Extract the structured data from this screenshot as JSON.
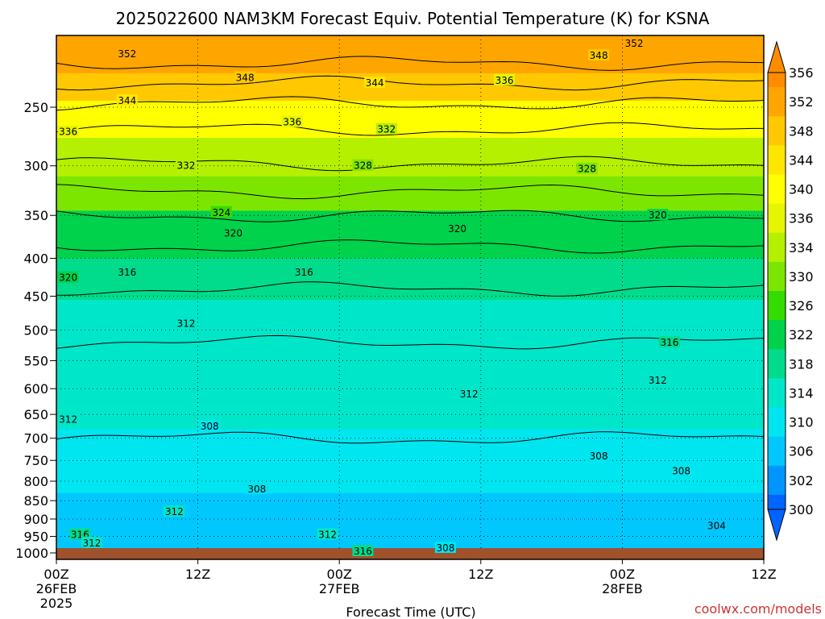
{
  "title": "2025022600 NAM3KM Forecast Equiv. Potential Temperature (K) for KSNA",
  "credit": "coolwx.com/models",
  "chart_data": {
    "type": "heatmap",
    "title": "2025022600 NAM3KM Forecast Equiv. Potential Temperature (K) for KSNA",
    "xlabel": "Forecast Time (UTC)",
    "ylabel": "",
    "x_range_hours": [
      0,
      60
    ],
    "y_range_hpa": [
      1000,
      200
    ],
    "y_scale": "log",
    "grid": true,
    "x_ticks": [
      {
        "hour": 0,
        "lines": [
          "00Z",
          "26FEB",
          "2025"
        ]
      },
      {
        "hour": 12,
        "lines": [
          "12Z"
        ]
      },
      {
        "hour": 24,
        "lines": [
          "00Z",
          "27FEB"
        ]
      },
      {
        "hour": 36,
        "lines": [
          "12Z"
        ]
      },
      {
        "hour": 48,
        "lines": [
          "00Z",
          "28FEB"
        ]
      },
      {
        "hour": 60,
        "lines": [
          "12Z"
        ]
      }
    ],
    "y_ticks": [
      250,
      300,
      350,
      400,
      450,
      500,
      550,
      600,
      650,
      700,
      750,
      800,
      850,
      900,
      950,
      1000
    ],
    "colorbar": {
      "labels": [
        356,
        352,
        348,
        344,
        340,
        336,
        334,
        330,
        326,
        322,
        318,
        314,
        310,
        306,
        302,
        300
      ],
      "colors": [
        "#ff8c00",
        "#ffa500",
        "#ffc800",
        "#ffe600",
        "#ffff00",
        "#e6f500",
        "#b4f000",
        "#7de600",
        "#34dc00",
        "#00d24b",
        "#00dc8c",
        "#00e6c8",
        "#00e6f0",
        "#00c8ff",
        "#0096ff",
        "#0064ff"
      ]
    },
    "fill_bands": [
      {
        "value": 352,
        "p_top": 200,
        "p_bottom": 225
      },
      {
        "value": 346,
        "p_top": 225,
        "p_bottom": 245
      },
      {
        "value": 340,
        "p_top": 245,
        "p_bottom": 275
      },
      {
        "value": 334,
        "p_top": 275,
        "p_bottom": 310
      },
      {
        "value": 328,
        "p_top": 310,
        "p_bottom": 345
      },
      {
        "value": 323,
        "p_top": 345,
        "p_bottom": 400
      },
      {
        "value": 319,
        "p_top": 400,
        "p_bottom": 455
      },
      {
        "value": 315,
        "p_top": 455,
        "p_bottom": 580
      },
      {
        "value": 312,
        "p_top": 580,
        "p_bottom": 680
      },
      {
        "value": 309,
        "p_top": 680,
        "p_bottom": 830
      },
      {
        "value": 307,
        "p_top": 830,
        "p_bottom": 920
      },
      {
        "value": 305,
        "p_top": 920,
        "p_bottom": 1000
      }
    ],
    "isotherm_levels": [
      {
        "theta_e": 352,
        "p": 218
      },
      {
        "theta_e": 348,
        "p": 232
      },
      {
        "theta_e": 344,
        "p": 247
      },
      {
        "theta_e": 336,
        "p": 268
      },
      {
        "theta_e": 332,
        "p": 298
      },
      {
        "theta_e": 328,
        "p": 325
      },
      {
        "theta_e": 324,
        "p": 350
      },
      {
        "theta_e": 320,
        "p": 385
      },
      {
        "theta_e": 316,
        "p": 440
      },
      {
        "theta_e": 312,
        "p": 520
      },
      {
        "theta_e": 308,
        "p": 700
      }
    ],
    "contour_labels": [
      {
        "text": "352",
        "hour": 6,
        "p": 212
      },
      {
        "text": "348",
        "hour": 16,
        "p": 228
      },
      {
        "text": "344",
        "hour": 27,
        "p": 232
      },
      {
        "text": "336",
        "hour": 38,
        "p": 230
      },
      {
        "text": "348",
        "hour": 46,
        "p": 213
      },
      {
        "text": "352",
        "hour": 49,
        "p": 205
      },
      {
        "text": "344",
        "hour": 6,
        "p": 245
      },
      {
        "text": "336",
        "hour": 1,
        "p": 270
      },
      {
        "text": "336",
        "hour": 20,
        "p": 262
      },
      {
        "text": "332",
        "hour": 28,
        "p": 268
      },
      {
        "text": "332",
        "hour": 11,
        "p": 300
      },
      {
        "text": "328",
        "hour": 26,
        "p": 300
      },
      {
        "text": "328",
        "hour": 45,
        "p": 303
      },
      {
        "text": "324",
        "hour": 14,
        "p": 347
      },
      {
        "text": "320",
        "hour": 15,
        "p": 370
      },
      {
        "text": "320",
        "hour": 34,
        "p": 365
      },
      {
        "text": "320",
        "hour": 51,
        "p": 350
      },
      {
        "text": "320",
        "hour": 1,
        "p": 425
      },
      {
        "text": "316",
        "hour": 6,
        "p": 418
      },
      {
        "text": "316",
        "hour": 21,
        "p": 418
      },
      {
        "text": "316",
        "hour": 52,
        "p": 520
      },
      {
        "text": "312",
        "hour": 11,
        "p": 490
      },
      {
        "text": "312",
        "hour": 35,
        "p": 610
      },
      {
        "text": "312",
        "hour": 51,
        "p": 585
      },
      {
        "text": "312",
        "hour": 1,
        "p": 660
      },
      {
        "text": "308",
        "hour": 13,
        "p": 675
      },
      {
        "text": "308",
        "hour": 46,
        "p": 740
      },
      {
        "text": "308",
        "hour": 53,
        "p": 775
      },
      {
        "text": "308",
        "hour": 17,
        "p": 820
      },
      {
        "text": "312",
        "hour": 10,
        "p": 880
      },
      {
        "text": "316",
        "hour": 2,
        "p": 945
      },
      {
        "text": "312",
        "hour": 3,
        "p": 970
      },
      {
        "text": "312",
        "hour": 23,
        "p": 945
      },
      {
        "text": "316",
        "hour": 26,
        "p": 995
      },
      {
        "text": "308",
        "hour": 33,
        "p": 985
      },
      {
        "text": "304",
        "hour": 56,
        "p": 920
      }
    ]
  }
}
